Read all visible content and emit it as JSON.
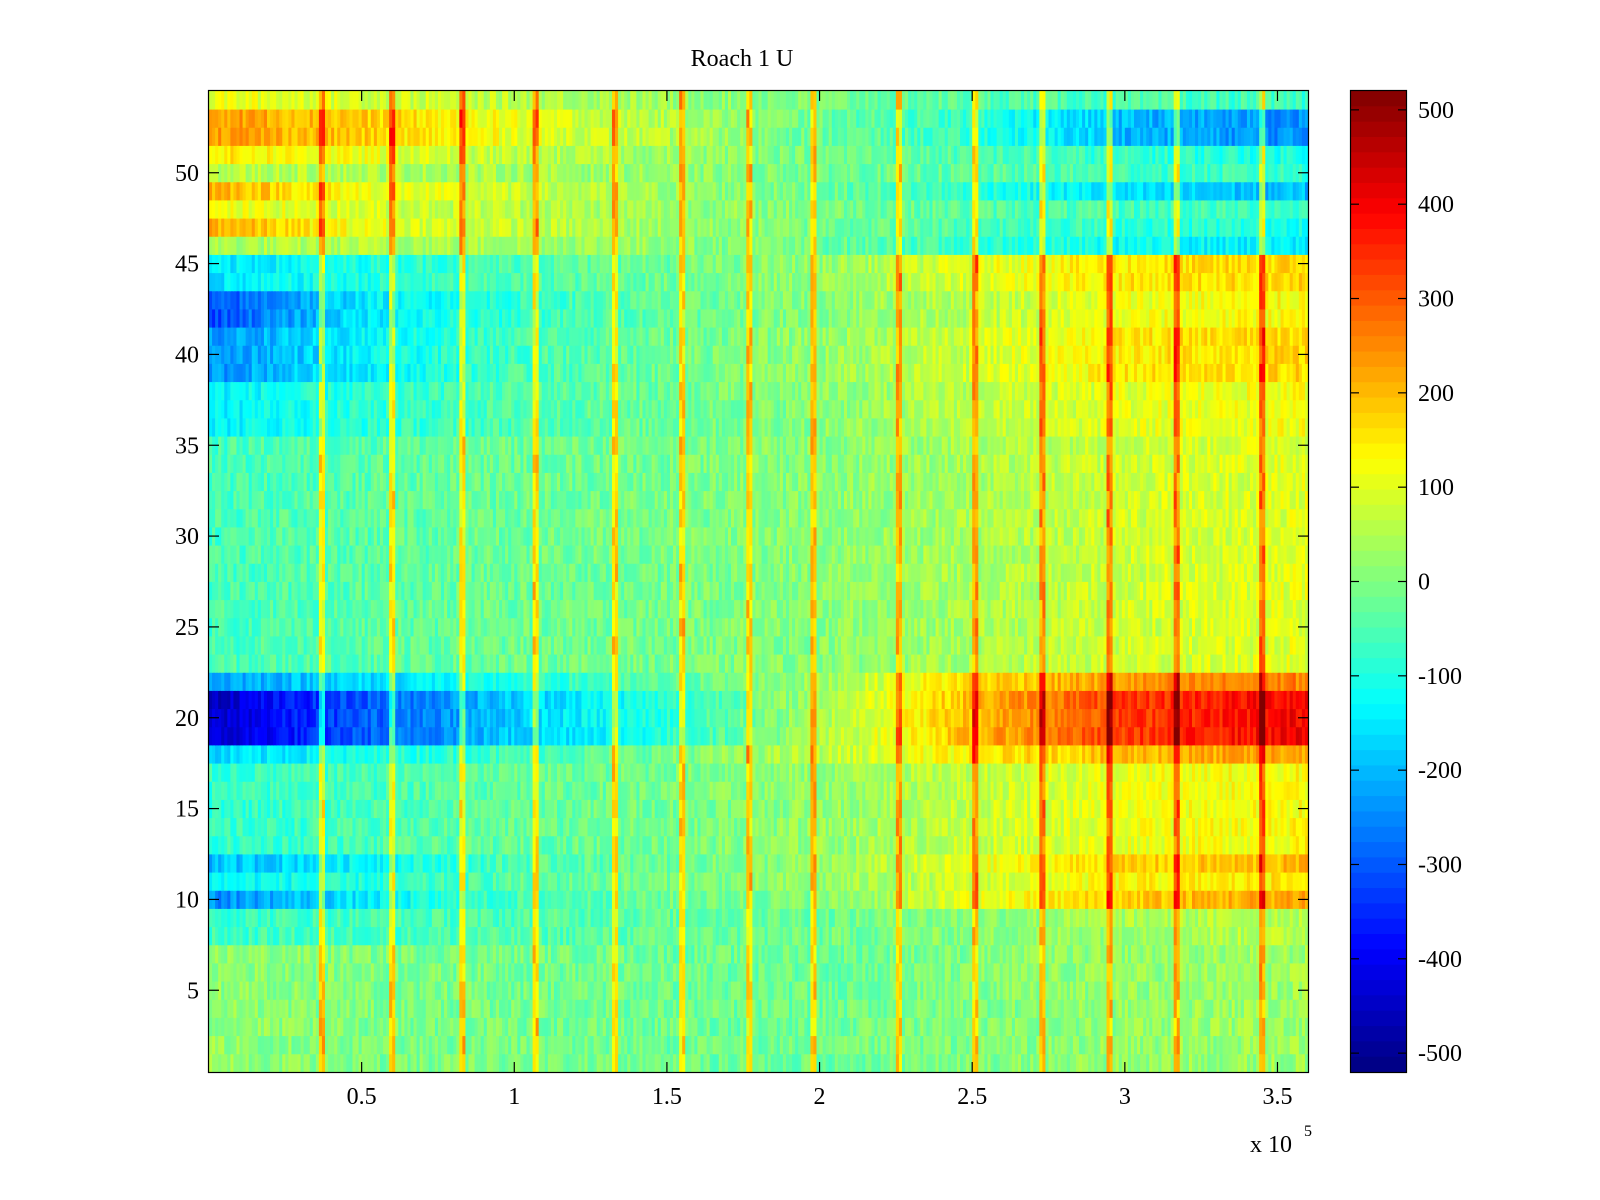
{
  "chart_data": {
    "type": "heatmap",
    "title": "Roach 1 U",
    "xlabel": "",
    "ylabel": "",
    "x_exponent_label": "x 10",
    "x_exponent_power": "5",
    "xlim": [
      0,
      3.6
    ],
    "ylim": [
      0.5,
      54.5
    ],
    "xticks": [
      0.5,
      1,
      1.5,
      2,
      2.5,
      3,
      3.5
    ],
    "xtick_labels": [
      "0.5",
      "1",
      "1.5",
      "2",
      "2.5",
      "3",
      "3.5"
    ],
    "yticks": [
      5,
      10,
      15,
      20,
      25,
      30,
      35,
      40,
      45,
      50
    ],
    "ytick_labels": [
      "5",
      "10",
      "15",
      "20",
      "25",
      "30",
      "35",
      "40",
      "45",
      "50"
    ],
    "rows": 54,
    "colorbar": {
      "colormap": "jet",
      "clim": [
        -520,
        520
      ],
      "ticks": [
        500,
        400,
        300,
        200,
        100,
        0,
        -100,
        -200,
        -300,
        -400,
        -500
      ],
      "tick_labels": [
        "500",
        "400",
        "300",
        "200",
        "100",
        "0",
        "-100",
        "-200",
        "-300",
        "-400",
        "-500"
      ]
    },
    "row_profiles": {
      "description": "Approximate mean value per row (channel) at x-anchors 0, 0.5, 1, 1.5, 2, 2.5, 3, 3.6 (x10^5)",
      "x_anchors": [
        0,
        0.5,
        1,
        1.5,
        2,
        2.5,
        3,
        3.6
      ],
      "rows": [
        {
          "rows": [
            1,
            7
          ],
          "values": [
            20,
            0,
            -10,
            -20,
            -20,
            0,
            20,
            30
          ]
        },
        {
          "rows": [
            8,
            9
          ],
          "values": [
            -70,
            -60,
            -50,
            -30,
            -20,
            10,
            40,
            60
          ]
        },
        {
          "rows": [
            10,
            10
          ],
          "values": [
            -250,
            -150,
            -60,
            -20,
            0,
            100,
            180,
            230
          ]
        },
        {
          "rows": [
            11,
            11
          ],
          "values": [
            -130,
            -100,
            -40,
            -10,
            20,
            80,
            130,
            150
          ]
        },
        {
          "rows": [
            12,
            12
          ],
          "values": [
            -200,
            -130,
            -50,
            -20,
            20,
            100,
            170,
            200
          ]
        },
        {
          "rows": [
            13,
            17
          ],
          "values": [
            -80,
            -60,
            -30,
            -10,
            20,
            70,
            110,
            130
          ]
        },
        {
          "rows": [
            18,
            18
          ],
          "values": [
            -180,
            -110,
            -60,
            -10,
            60,
            140,
            200,
            230
          ]
        },
        {
          "rows": [
            19,
            21
          ],
          "values": [
            -450,
            -300,
            -180,
            -90,
            40,
            200,
            330,
            400
          ]
        },
        {
          "rows": [
            22,
            22
          ],
          "values": [
            -220,
            -170,
            -100,
            -40,
            30,
            170,
            230,
            260
          ]
        },
        {
          "rows": [
            23,
            35
          ],
          "values": [
            -60,
            -40,
            -20,
            -10,
            10,
            40,
            80,
            100
          ]
        },
        {
          "rows": [
            36,
            38
          ],
          "values": [
            -140,
            -90,
            -50,
            -20,
            10,
            60,
            100,
            120
          ]
        },
        {
          "rows": [
            39,
            41
          ],
          "values": [
            -240,
            -140,
            -60,
            -20,
            20,
            80,
            150,
            170
          ]
        },
        {
          "rows": [
            42,
            43
          ],
          "values": [
            -320,
            -150,
            -80,
            -30,
            10,
            60,
            110,
            130
          ]
        },
        {
          "rows": [
            44,
            45
          ],
          "values": [
            -160,
            -100,
            -50,
            -20,
            20,
            100,
            150,
            170
          ]
        },
        {
          "rows": [
            46,
            46
          ],
          "values": [
            40,
            50,
            40,
            20,
            -20,
            -80,
            -120,
            -150
          ]
        },
        {
          "rows": [
            47,
            47
          ],
          "values": [
            220,
            110,
            70,
            30,
            -10,
            -50,
            -80,
            -100
          ]
        },
        {
          "rows": [
            48,
            48
          ],
          "values": [
            110,
            90,
            60,
            30,
            0,
            -40,
            -60,
            -70
          ]
        },
        {
          "rows": [
            49,
            49
          ],
          "values": [
            220,
            120,
            70,
            30,
            -20,
            -80,
            -170,
            -200
          ]
        },
        {
          "rows": [
            50,
            50
          ],
          "values": [
            60,
            50,
            40,
            20,
            -10,
            -40,
            -60,
            -80
          ]
        },
        {
          "rows": [
            51,
            51
          ],
          "values": [
            150,
            110,
            60,
            30,
            -10,
            -50,
            -80,
            -100
          ]
        },
        {
          "rows": [
            52,
            53
          ],
          "values": [
            240,
            180,
            110,
            50,
            -20,
            -80,
            -200,
            -250
          ]
        },
        {
          "rows": [
            54,
            54
          ],
          "values": [
            110,
            90,
            60,
            30,
            -10,
            -40,
            -60,
            -70
          ]
        }
      ]
    },
    "vertical_events_x": [
      0.37,
      0.6,
      0.83,
      1.07,
      1.33,
      1.55,
      1.77,
      1.98,
      2.26,
      2.51,
      2.73,
      2.95,
      3.17,
      3.45
    ]
  }
}
